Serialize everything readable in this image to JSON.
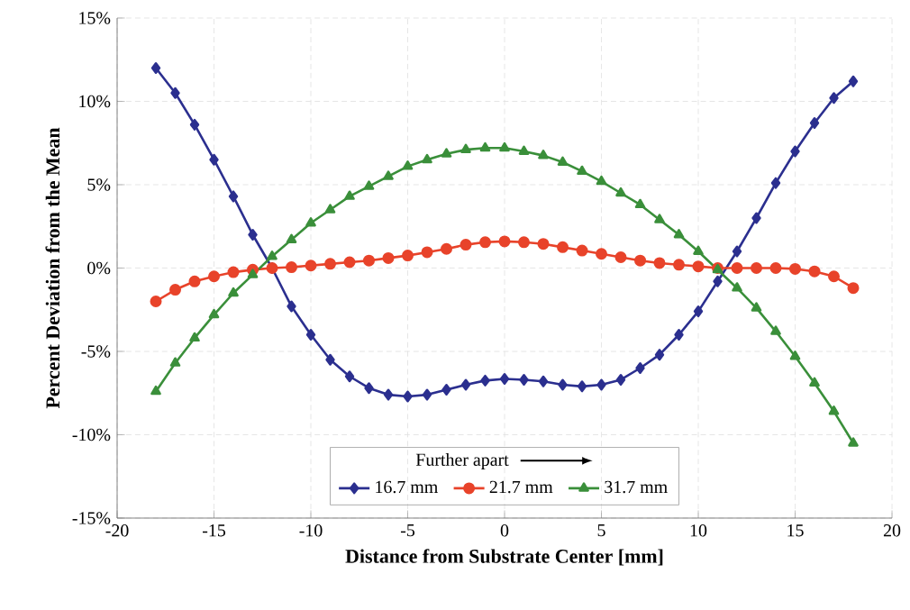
{
  "chart_data": {
    "type": "line",
    "xlabel": "Distance from Substrate Center [mm]",
    "ylabel": "Percent Deviation from the Mean",
    "legend_title": "Further apart",
    "x": [
      -18,
      -17,
      -16,
      -15,
      -14,
      -13,
      -12,
      -11,
      -10,
      -9,
      -8,
      -7,
      -6,
      -5,
      -4,
      -3,
      -2,
      -1,
      0,
      1,
      2,
      3,
      4,
      5,
      6,
      7,
      8,
      9,
      10,
      11,
      12,
      13,
      14,
      15,
      16,
      17,
      18
    ],
    "series": [
      {
        "name": "16.7 mm",
        "color": "#2b2f8f",
        "marker": "diamond",
        "values": [
          12.0,
          10.5,
          8.6,
          6.5,
          4.3,
          2.0,
          0.0,
          -2.3,
          -4.0,
          -5.5,
          -6.5,
          -7.2,
          -7.6,
          -7.7,
          -7.6,
          -7.3,
          -7.0,
          -6.75,
          -6.65,
          -6.7,
          -6.8,
          -7.0,
          -7.1,
          -7.0,
          -6.7,
          -6.0,
          -5.2,
          -4.0,
          -2.6,
          -0.8,
          1.0,
          3.0,
          5.1,
          7.0,
          8.7,
          10.2,
          11.2
        ]
      },
      {
        "name": "21.7 mm",
        "color": "#e8432a",
        "marker": "circle",
        "values": [
          -2.0,
          -1.3,
          -0.8,
          -0.5,
          -0.25,
          -0.1,
          0.0,
          0.05,
          0.15,
          0.25,
          0.35,
          0.45,
          0.6,
          0.75,
          0.95,
          1.15,
          1.4,
          1.55,
          1.6,
          1.55,
          1.45,
          1.25,
          1.05,
          0.85,
          0.65,
          0.45,
          0.3,
          0.2,
          0.1,
          0.0,
          0.0,
          0.0,
          0.0,
          -0.05,
          -0.2,
          -0.5,
          -1.2
        ]
      },
      {
        "name": "31.7 mm",
        "color": "#3a8f3a",
        "marker": "triangle",
        "values": [
          -7.4,
          -5.7,
          -4.2,
          -2.8,
          -1.5,
          -0.4,
          0.7,
          1.7,
          2.7,
          3.5,
          4.3,
          4.9,
          5.5,
          6.1,
          6.5,
          6.85,
          7.1,
          7.2,
          7.2,
          7.0,
          6.75,
          6.35,
          5.8,
          5.2,
          4.5,
          3.8,
          2.9,
          2.0,
          1.0,
          -0.1,
          -1.2,
          -2.4,
          -3.8,
          -5.3,
          -6.9,
          -8.6,
          -10.5
        ]
      }
    ],
    "xlim": [
      -20,
      20
    ],
    "xticks": [
      -20,
      -15,
      -10,
      -5,
      0,
      5,
      10,
      15,
      20
    ],
    "ylim": [
      -15,
      15
    ],
    "yticks": [
      {
        "value": -15,
        "label": "-15%"
      },
      {
        "value": -10,
        "label": "-10%"
      },
      {
        "value": -5,
        "label": "-5%"
      },
      {
        "value": 0,
        "label": "0%"
      },
      {
        "value": 5,
        "label": "5%"
      },
      {
        "value": 10,
        "label": "10%"
      },
      {
        "value": 15,
        "label": "15%"
      }
    ],
    "grid": true,
    "legend": "bottom",
    "line_style": "solid"
  }
}
